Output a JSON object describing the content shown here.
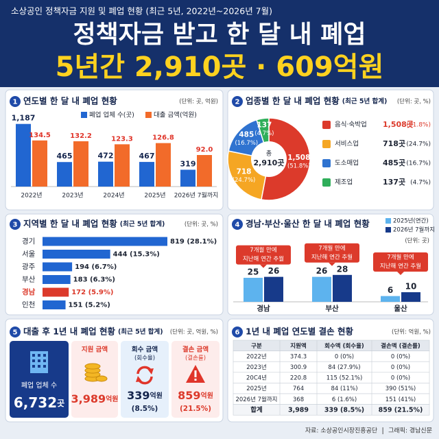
{
  "header": {
    "subtitle": "소상공인 정책자금 지원 및 폐업 현황 (최근 5년, 2022년~2026년 7월)",
    "title_line1": "정책자금 받고 한 달 내 폐업",
    "title_line2": "5년간 2,910곳 · 609억원"
  },
  "chart_data": [
    {
      "type": "bar",
      "section_number": 1,
      "title": "연도별 한 달 내 폐업 현황",
      "unit": "(단위: 곳, 억원)",
      "categories": [
        "2022년",
        "2023년",
        "2024년",
        "2025년",
        "2026년 7월까지"
      ],
      "series": [
        {
          "name": "폐업 업체 수(곳)",
          "color": "#2166d1",
          "label_color": "#14254d",
          "values": [
            1187,
            465,
            472,
            467,
            319
          ],
          "value_labels": [
            "1,187",
            "465",
            "472",
            "467",
            "319"
          ]
        },
        {
          "name": "대출 금액(억원)",
          "color": "#f26b2a",
          "label_color": "#e0352a",
          "axis": "y2",
          "values": [
            134.5,
            132.2,
            123.3,
            126.8,
            92.0
          ],
          "value_labels": [
            "134.5",
            "132.2",
            "123.3",
            "126.8",
            "92.0"
          ]
        }
      ],
      "ylim": [
        0,
        1300
      ],
      "y2lim": [
        0,
        200
      ]
    },
    {
      "type": "pie",
      "section_number": 2,
      "title": "업종별 한 달 내 폐업 현황",
      "subtitle": "(최근 5년 합계)",
      "unit": "(단위: 곳, %)",
      "categories": [
        "음식·숙박업",
        "서비스업",
        "도소매업",
        "제조업"
      ],
      "values": [
        1508,
        718,
        485,
        137
      ],
      "value_labels": [
        "1,508",
        "718",
        "485",
        "137"
      ],
      "legend_labels": [
        "1,508곳",
        "718곳",
        "485곳",
        "137곳"
      ],
      "percents": [
        51.8,
        24.7,
        16.7,
        4.7
      ],
      "percent_labels": [
        "(51.8%)",
        "(24.7%)",
        "(16.7%)",
        "(4.7%)"
      ],
      "colors": [
        "#dc3a2b",
        "#f5a623",
        "#2f73d0",
        "#2fae5a"
      ],
      "center_label": "총",
      "center_value": "2,910곳"
    },
    {
      "type": "hbar",
      "section_number": 3,
      "title": "지역별 한 달 내 폐업 현황",
      "subtitle": "(최근 5년 합계)",
      "unit": "(단위: 곳, %)",
      "categories": [
        "경기",
        "서울",
        "광주",
        "부산",
        "경남",
        "인천"
      ],
      "values": [
        819,
        444,
        194,
        183,
        172,
        151
      ],
      "percents": [
        28.1,
        15.3,
        6.7,
        6.3,
        5.9,
        5.2
      ],
      "value_labels": [
        "819 (28.1%)",
        "444 (15.3%)",
        "194 (6.7%)",
        "183 (6.3%)",
        "172 (5.9%)",
        "151 (5.2%)"
      ],
      "colors": [
        "#2166d1",
        "#2166d1",
        "#2166d1",
        "#2166d1",
        "#dc3a2b",
        "#2166d1"
      ],
      "xlim": [
        0,
        900
      ]
    },
    {
      "type": "grouped_bar",
      "section_number": 4,
      "title": "경남·부산·울산 한 달 내 폐업 현황",
      "unit": "(단위: 곳)",
      "categories": [
        "경남",
        "부산",
        "울산"
      ],
      "series": [
        {
          "name": "2025년(연간)",
          "color": "#5db3ee",
          "values": [
            25,
            26,
            6
          ]
        },
        {
          "name": "2026년 7월까지",
          "color": "#173a8a",
          "values": [
            26,
            28,
            10
          ]
        }
      ],
      "annotations": [
        [
          "7개월 만에",
          "지난해 연간 추월"
        ],
        [
          "7개월 만에",
          "지난해 연간 추월"
        ],
        [
          "7개월 만에",
          "지난해 연간 추월"
        ]
      ],
      "ylim": [
        0,
        30
      ]
    }
  ],
  "panel5": {
    "section_number": 5,
    "title": "대출 후 1년 내 폐업 현황",
    "subtitle": "(최근 5년 합계)",
    "unit": "(단위: 곳, 억원, %)",
    "cards": [
      {
        "title": "폐업 업체 수",
        "value": "6,732",
        "unit": "곳"
      },
      {
        "title": "지원 금액",
        "value": "3,989",
        "unit": "억원"
      },
      {
        "title": "회수 금액",
        "note": "(회수율)",
        "value": "339",
        "unit": "억원",
        "rate": "(8.5%)"
      },
      {
        "title": "결손 금액",
        "note": "(결손률)",
        "value": "859",
        "unit": "억원",
        "rate": "(21.5%)"
      }
    ]
  },
  "table": {
    "section_number": 6,
    "title": "1년 내 폐업 연도별 결손 현황",
    "unit": "(단위: 억원, %)",
    "header": [
      "구분",
      "지원액",
      "회수액 (회수율)",
      "결손액 (결손률)"
    ],
    "rows": [
      [
        "2022년",
        "374.3",
        "0 (0%)",
        "0 (0%)"
      ],
      [
        "2023년",
        "300.9",
        "84 (27.9%)",
        "0 (0%)"
      ],
      [
        "20C4년",
        "220.8",
        "115 (52.1%)",
        "0 (0%)"
      ],
      [
        "2025년",
        "764",
        "84 (11%)",
        "390 (51%)"
      ],
      [
        "2026년 7월까지",
        "368",
        "6 (1.6%)",
        "151 (41%)"
      ],
      [
        "합계",
        "3,989",
        "339 (8.5%)",
        "859 (21.5%)"
      ]
    ]
  },
  "footer": {
    "source": "자료: 소상공인시장진흥공단",
    "credit": "그래픽: 경남신문"
  }
}
